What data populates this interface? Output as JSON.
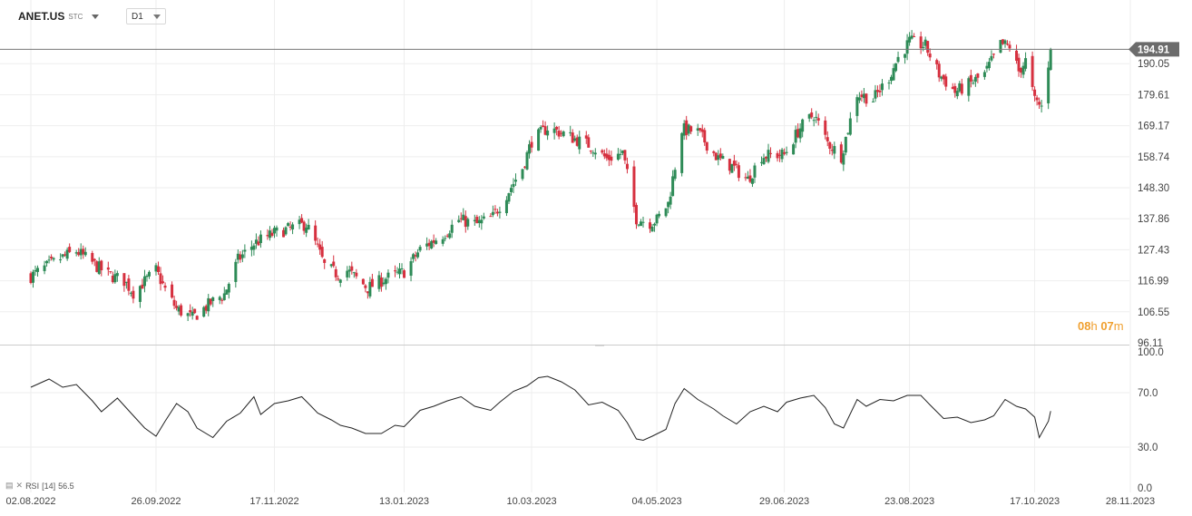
{
  "header": {
    "symbol": "ANET.US",
    "symbol_suffix": "STC",
    "timeframe": "D1"
  },
  "countdown": {
    "hours": "08",
    "hours_unit": "h",
    "minutes": "07",
    "minutes_unit": "m"
  },
  "rsi_label": {
    "name": "RSI",
    "period": "[14]",
    "value": "56.5"
  },
  "colors": {
    "up": "#2e8b57",
    "down": "#d6303f",
    "grid": "#eeeeee",
    "price_tag": "#6b6b6b",
    "countdown": "#f0a030"
  },
  "chart_data": [
    {
      "type": "candlestick",
      "symbol": "ANET.US",
      "timeframe": "D1",
      "current_price": 194.91,
      "current_price_label": "194.91",
      "ylim": [
        96.11,
        200.5
      ],
      "y_ticks": [
        {
          "v": 190.05,
          "label": "190.05"
        },
        {
          "v": 179.61,
          "label": "179.61"
        },
        {
          "v": 169.17,
          "label": "169.17"
        },
        {
          "v": 158.74,
          "label": "158.74"
        },
        {
          "v": 148.3,
          "label": "148.30"
        },
        {
          "v": 137.86,
          "label": "137.86"
        },
        {
          "v": 127.43,
          "label": "127.43"
        },
        {
          "v": 116.99,
          "label": "116.99"
        },
        {
          "v": 106.55,
          "label": "106.55"
        },
        {
          "v": 96.11,
          "label": "96.11"
        }
      ],
      "x_ticks": [
        {
          "date": "2022-08-02",
          "label": "02.08.2022"
        },
        {
          "date": "2022-09-26",
          "label": "26.09.2022"
        },
        {
          "date": "2022-11-17",
          "label": "17.11.2022"
        },
        {
          "date": "2023-01-13",
          "label": "13.01.2023"
        },
        {
          "date": "2023-03-10",
          "label": "10.03.2023"
        },
        {
          "date": "2023-05-04",
          "label": "04.05.2023"
        },
        {
          "date": "2023-06-29",
          "label": "29.06.2023"
        },
        {
          "date": "2023-08-23",
          "label": "23.08.2023"
        },
        {
          "date": "2023-10-17",
          "label": "17.10.2023"
        },
        {
          "date": "2023-11-28",
          "label": "28.11.2023"
        }
      ],
      "close_series": [
        [
          "2022-08-02",
          118.5
        ],
        [
          "2022-08-15",
          124.5
        ],
        [
          "2022-08-22",
          127.0
        ],
        [
          "2022-08-29",
          123.0
        ],
        [
          "2022-09-05",
          119.0
        ],
        [
          "2022-09-12",
          117.0
        ],
        [
          "2022-09-16",
          113.0
        ],
        [
          "2022-09-26",
          120.5
        ],
        [
          "2022-09-30",
          114.0
        ],
        [
          "2022-10-05",
          107.5
        ],
        [
          "2022-10-12",
          104.5
        ],
        [
          "2022-10-20",
          109.5
        ],
        [
          "2022-10-26",
          112.5
        ],
        [
          "2022-11-01",
          124.0
        ],
        [
          "2022-11-08",
          129.5
        ],
        [
          "2022-11-17",
          133.0
        ],
        [
          "2022-11-28",
          135.5
        ],
        [
          "2022-12-01",
          136.0
        ],
        [
          "2022-12-06",
          128.0
        ],
        [
          "2022-12-09",
          122.0
        ],
        [
          "2022-12-15",
          119.0
        ],
        [
          "2022-12-19",
          120.5
        ],
        [
          "2022-12-28",
          114.5
        ],
        [
          "2023-01-04",
          117.5
        ],
        [
          "2023-01-13",
          120.0
        ],
        [
          "2023-01-20",
          127.5
        ],
        [
          "2023-01-30",
          132.5
        ],
        [
          "2023-02-06",
          137.5
        ],
        [
          "2023-02-14",
          136.0
        ],
        [
          "2023-02-21",
          138.5
        ],
        [
          "2023-02-27",
          146.0
        ],
        [
          "2023-03-06",
          155.0
        ],
        [
          "2023-03-10",
          164.0
        ],
        [
          "2023-03-17",
          168.5
        ],
        [
          "2023-03-24",
          166.5
        ],
        [
          "2023-03-31",
          164.0
        ],
        [
          "2023-04-05",
          162.5
        ],
        [
          "2023-04-12",
          158.0
        ],
        [
          "2023-04-19",
          160.0
        ],
        [
          "2023-04-25",
          138.0
        ],
        [
          "2023-05-01",
          136.5
        ],
        [
          "2023-05-04",
          137.5
        ],
        [
          "2023-05-09",
          143.0
        ],
        [
          "2023-05-15",
          168.0
        ],
        [
          "2023-05-22",
          167.0
        ],
        [
          "2023-05-31",
          158.0
        ],
        [
          "2023-06-06",
          155.5
        ],
        [
          "2023-06-13",
          151.0
        ],
        [
          "2023-06-19",
          159.0
        ],
        [
          "2023-06-29",
          159.5
        ],
        [
          "2023-07-06",
          168.5
        ],
        [
          "2023-07-12",
          173.0
        ],
        [
          "2023-07-18",
          163.5
        ],
        [
          "2023-07-24",
          159.0
        ],
        [
          "2023-07-31",
          180.0
        ],
        [
          "2023-08-07",
          178.0
        ],
        [
          "2023-08-14",
          185.5
        ],
        [
          "2023-08-18",
          192.0
        ],
        [
          "2023-08-23",
          197.5
        ],
        [
          "2023-08-30",
          196.0
        ],
        [
          "2023-09-05",
          186.5
        ],
        [
          "2023-09-12",
          180.5
        ],
        [
          "2023-09-18",
          183.0
        ],
        [
          "2023-09-25",
          186.5
        ],
        [
          "2023-10-02",
          196.5
        ],
        [
          "2023-10-06",
          196.0
        ],
        [
          "2023-10-10",
          187.5
        ],
        [
          "2023-10-13",
          191.0
        ],
        [
          "2023-10-17",
          177.5
        ],
        [
          "2023-10-20",
          175.5
        ],
        [
          "2023-10-24",
          194.91
        ]
      ]
    },
    {
      "type": "line",
      "name": "RSI",
      "period": 14,
      "last_value": 56.5,
      "ylim": [
        0,
        100
      ],
      "y_ticks": [
        {
          "v": 100,
          "label": "100.0"
        },
        {
          "v": 70,
          "label": "70.0"
        },
        {
          "v": 30,
          "label": "30.0"
        },
        {
          "v": 0,
          "label": "0.0"
        }
      ],
      "points": [
        [
          "2022-08-02",
          74
        ],
        [
          "2022-08-10",
          80
        ],
        [
          "2022-08-16",
          74
        ],
        [
          "2022-08-22",
          76
        ],
        [
          "2022-08-29",
          64
        ],
        [
          "2022-09-02",
          56
        ],
        [
          "2022-09-09",
          66
        ],
        [
          "2022-09-15",
          55
        ],
        [
          "2022-09-21",
          44
        ],
        [
          "2022-09-26",
          38
        ],
        [
          "2022-09-30",
          49
        ],
        [
          "2022-10-05",
          62
        ],
        [
          "2022-10-10",
          56
        ],
        [
          "2022-10-14",
          44
        ],
        [
          "2022-10-21",
          37
        ],
        [
          "2022-10-27",
          49
        ],
        [
          "2022-11-02",
          55
        ],
        [
          "2022-11-08",
          67
        ],
        [
          "2022-11-11",
          54
        ],
        [
          "2022-11-17",
          62
        ],
        [
          "2022-11-23",
          64
        ],
        [
          "2022-11-29",
          67
        ],
        [
          "2022-12-02",
          62
        ],
        [
          "2022-12-06",
          55
        ],
        [
          "2022-12-12",
          50
        ],
        [
          "2022-12-16",
          46
        ],
        [
          "2022-12-21",
          44
        ],
        [
          "2022-12-27",
          40
        ],
        [
          "2023-01-03",
          40
        ],
        [
          "2023-01-09",
          46
        ],
        [
          "2023-01-13",
          45
        ],
        [
          "2023-01-20",
          57
        ],
        [
          "2023-01-26",
          60
        ],
        [
          "2023-02-01",
          64
        ],
        [
          "2023-02-07",
          67
        ],
        [
          "2023-02-13",
          60
        ],
        [
          "2023-02-20",
          57
        ],
        [
          "2023-02-24",
          63
        ],
        [
          "2023-03-02",
          71
        ],
        [
          "2023-03-08",
          75
        ],
        [
          "2023-03-13",
          81
        ],
        [
          "2023-03-17",
          82
        ],
        [
          "2023-03-23",
          78
        ],
        [
          "2023-03-29",
          72
        ],
        [
          "2023-04-04",
          61
        ],
        [
          "2023-04-10",
          63
        ],
        [
          "2023-04-17",
          57
        ],
        [
          "2023-04-21",
          48
        ],
        [
          "2023-04-25",
          36
        ],
        [
          "2023-04-28",
          35
        ],
        [
          "2023-05-02",
          38
        ],
        [
          "2023-05-08",
          43
        ],
        [
          "2023-05-12",
          62
        ],
        [
          "2023-05-16",
          73
        ],
        [
          "2023-05-22",
          65
        ],
        [
          "2023-05-29",
          58
        ],
        [
          "2023-06-02",
          53
        ],
        [
          "2023-06-08",
          47
        ],
        [
          "2023-06-14",
          56
        ],
        [
          "2023-06-20",
          60
        ],
        [
          "2023-06-26",
          56
        ],
        [
          "2023-06-30",
          63
        ],
        [
          "2023-07-06",
          66
        ],
        [
          "2023-07-12",
          68
        ],
        [
          "2023-07-17",
          59
        ],
        [
          "2023-07-21",
          47
        ],
        [
          "2023-07-25",
          44
        ],
        [
          "2023-07-31",
          65
        ],
        [
          "2023-08-04",
          60
        ],
        [
          "2023-08-10",
          65
        ],
        [
          "2023-08-16",
          64
        ],
        [
          "2023-08-22",
          68
        ],
        [
          "2023-08-28",
          68
        ],
        [
          "2023-09-01",
          61
        ],
        [
          "2023-09-07",
          51
        ],
        [
          "2023-09-13",
          52
        ],
        [
          "2023-09-19",
          48
        ],
        [
          "2023-09-25",
          50
        ],
        [
          "2023-09-29",
          53
        ],
        [
          "2023-10-04",
          65
        ],
        [
          "2023-10-09",
          60
        ],
        [
          "2023-10-13",
          58
        ],
        [
          "2023-10-17",
          52
        ],
        [
          "2023-10-19",
          37
        ],
        [
          "2023-10-23",
          49
        ],
        [
          "2023-10-24",
          56.5
        ]
      ]
    }
  ]
}
